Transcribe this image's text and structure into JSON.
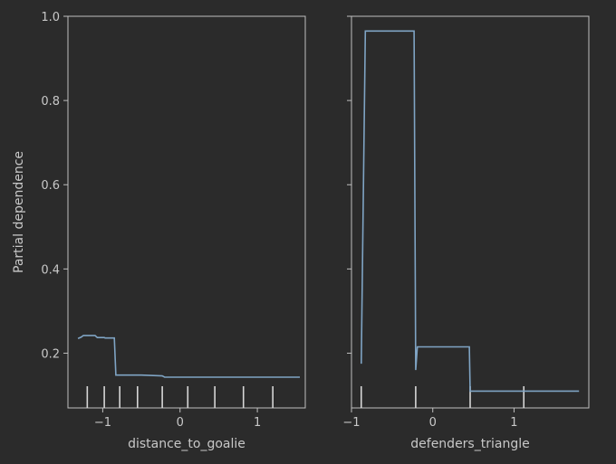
{
  "colors": {
    "background": "#2b2b2b",
    "axes_face": "#2b2b2b",
    "spine": "#bfbfbf",
    "text": "#c8c8c8",
    "line": "#7fa4c4",
    "rug": "#d6d6d6"
  },
  "chart_data": [
    {
      "type": "line",
      "xlabel": "distance_to_goalie",
      "ylabel": "Partial dependence",
      "xlim": [
        -1.45,
        1.62
      ],
      "ylim": [
        0.07,
        1.0
      ],
      "xticks": [
        -1,
        0,
        1
      ],
      "xtick_labels": [
        "−1",
        "0",
        "1"
      ],
      "yticks": [
        0.2,
        0.4,
        0.6,
        0.8,
        1.0
      ],
      "ytick_labels": [
        "0.2",
        "0.4",
        "0.6",
        "0.8",
        "1.0"
      ],
      "series": [
        {
          "x": [
            -1.32,
            -1.28,
            -1.25,
            -1.1,
            -1.07,
            -0.98,
            -0.97,
            -0.85,
            -0.83,
            -0.5,
            -0.23,
            -0.2,
            1.55
          ],
          "y": [
            0.235,
            0.238,
            0.242,
            0.242,
            0.237,
            0.237,
            0.236,
            0.236,
            0.148,
            0.148,
            0.146,
            0.143,
            0.143
          ]
        }
      ],
      "rug": [
        -1.2,
        -0.98,
        -0.78,
        -0.55,
        -0.23,
        0.1,
        0.45,
        0.82,
        1.2
      ]
    },
    {
      "type": "line",
      "xlabel": "defenders_triangle",
      "ylabel": "",
      "xlim": [
        -1.0,
        1.92
      ],
      "ylim": [
        0.07,
        1.0
      ],
      "xticks": [
        -1,
        0,
        1
      ],
      "xtick_labels": [
        "−1",
        "0",
        "1"
      ],
      "yticks": [
        0.2,
        0.4,
        0.6,
        0.8,
        1.0
      ],
      "ytick_labels": [
        "",
        "",
        "",
        "",
        ""
      ],
      "series": [
        {
          "x": [
            -0.88,
            -0.83,
            -0.23,
            -0.21,
            -0.19,
            0.45,
            0.46,
            1.8
          ],
          "y": [
            0.175,
            0.965,
            0.965,
            0.16,
            0.215,
            0.215,
            0.11,
            0.11
          ]
        }
      ],
      "rug": [
        -0.88,
        -0.21,
        0.46,
        1.12
      ]
    }
  ]
}
